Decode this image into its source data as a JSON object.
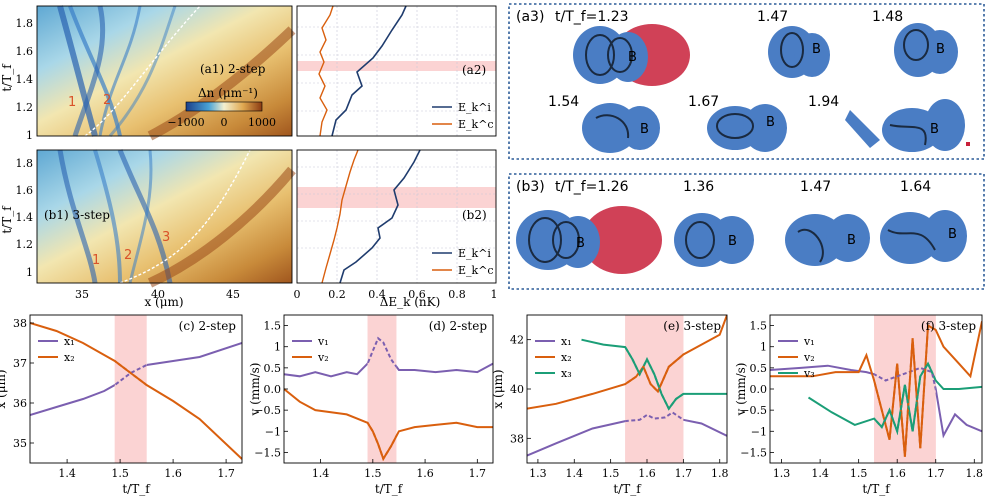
{
  "colors": {
    "blue": "#7b5fb0",
    "orange": "#d95f0e",
    "green": "#1b9e77",
    "navy": "#1f3c6e",
    "shade": "#fbd3d3",
    "cell": "#4a7dc4",
    "red": "#c8203a"
  },
  "panel_a1": {
    "label": "(a1) 2-step",
    "ylabel": "t/T_f",
    "yticks": [
      "1",
      "1.2",
      "1.4",
      "1.6",
      "1.8"
    ],
    "annot": [
      "1",
      "2"
    ],
    "colorbar": {
      "title": "Δn (μm⁻¹)",
      "ticks": [
        "−1000",
        "0",
        "1000"
      ]
    }
  },
  "panel_b1": {
    "label": "(b1) 3-step",
    "ylabel": "t/T_f",
    "yticks": [
      "1",
      "1.2",
      "1.4",
      "1.6",
      "1.8"
    ],
    "xticks": [
      "35",
      "40",
      "45"
    ],
    "xlabel": "x (μm)",
    "annot": [
      "1",
      "2",
      "3"
    ]
  },
  "panel_a2": {
    "label": "(a2)",
    "legend": [
      "E_k^i",
      "E_k^c"
    ]
  },
  "panel_b2": {
    "label": "(b2)",
    "legend": [
      "E_k^i",
      "E_k^c"
    ],
    "xticks": [
      "0",
      "0.2",
      "0.4",
      "0.6",
      "0.8",
      "1"
    ],
    "xlabel": "ΔE_k (nK)"
  },
  "panel_a3": {
    "label": "(a3)",
    "times": [
      "t/T_f=1.23",
      "1.47",
      "1.48",
      "1.54",
      "1.67",
      "1.94"
    ],
    "marker": "B"
  },
  "panel_b3": {
    "label": "(b3)",
    "times": [
      "t/T_f=1.26",
      "1.36",
      "1.47",
      "1.64"
    ],
    "marker": "B"
  },
  "chart_data": [
    {
      "id": "c",
      "type": "line",
      "title": "(c) 2-step",
      "xlabel": "t/T_f",
      "ylabel": "x (μm)",
      "xlim": [
        1.33,
        1.73
      ],
      "ylim": [
        34.5,
        38.2
      ],
      "xticks": [
        1.4,
        1.5,
        1.6,
        1.7
      ],
      "yticks": [
        35,
        36,
        37,
        38
      ],
      "shade": [
        1.49,
        1.55
      ],
      "series": [
        {
          "name": "x₁",
          "color": "#7b5fb0",
          "x": [
            1.33,
            1.38,
            1.43,
            1.47,
            1.49,
            1.52,
            1.55,
            1.6,
            1.65,
            1.73
          ],
          "y": [
            35.7,
            35.9,
            36.1,
            36.3,
            36.45,
            36.75,
            36.95,
            37.05,
            37.15,
            37.5
          ]
        },
        {
          "name": "x₂",
          "color": "#d95f0e",
          "x": [
            1.33,
            1.38,
            1.43,
            1.47,
            1.49,
            1.52,
            1.55,
            1.6,
            1.65,
            1.73
          ],
          "y": [
            38.0,
            37.8,
            37.5,
            37.2,
            37.05,
            36.75,
            36.45,
            36.05,
            35.6,
            34.6
          ]
        }
      ],
      "legend": [
        "x₁",
        "x₂"
      ]
    },
    {
      "id": "d",
      "type": "line",
      "title": "(d) 2-step",
      "xlabel": "t/T_f",
      "ylabel": "v (mm/s)",
      "xlim": [
        1.33,
        1.73
      ],
      "ylim": [
        -1.75,
        1.75
      ],
      "xticks": [
        1.4,
        1.5,
        1.6,
        1.7
      ],
      "yticks": [
        -1.5,
        -1.0,
        -0.5,
        0.0,
        0.5,
        1.0,
        1.5
      ],
      "shade": [
        1.49,
        1.545
      ],
      "series": [
        {
          "name": "v₁",
          "color": "#7b5fb0",
          "x": [
            1.33,
            1.36,
            1.39,
            1.42,
            1.45,
            1.47,
            1.49,
            1.5,
            1.51,
            1.52,
            1.535,
            1.55,
            1.58,
            1.62,
            1.66,
            1.7,
            1.73
          ],
          "y": [
            0.35,
            0.3,
            0.4,
            0.3,
            0.4,
            0.35,
            0.6,
            0.9,
            1.2,
            1.1,
            0.7,
            0.45,
            0.45,
            0.4,
            0.45,
            0.4,
            0.6
          ]
        },
        {
          "name": "v₂",
          "color": "#d95f0e",
          "x": [
            1.33,
            1.36,
            1.39,
            1.42,
            1.45,
            1.47,
            1.49,
            1.5,
            1.51,
            1.52,
            1.535,
            1.55,
            1.58,
            1.62,
            1.66,
            1.7,
            1.73
          ],
          "y": [
            0.0,
            -0.3,
            -0.5,
            -0.55,
            -0.6,
            -0.7,
            -0.8,
            -1.0,
            -1.3,
            -1.65,
            -1.35,
            -1.0,
            -0.9,
            -0.85,
            -0.8,
            -0.9,
            -0.9
          ]
        }
      ],
      "legend": [
        "v₁",
        "v₂"
      ]
    },
    {
      "id": "e",
      "type": "line",
      "title": "(e) 3-step",
      "xlabel": "t/T_f",
      "ylabel": "x (μm)",
      "xlim": [
        1.27,
        1.82
      ],
      "ylim": [
        37.0,
        43.0
      ],
      "xticks": [
        1.3,
        1.4,
        1.5,
        1.6,
        1.7,
        1.8
      ],
      "yticks": [
        38,
        40,
        42
      ],
      "shade": [
        1.54,
        1.7
      ],
      "series": [
        {
          "name": "x₁",
          "color": "#7b5fb0",
          "x": [
            1.27,
            1.35,
            1.45,
            1.54,
            1.58,
            1.6,
            1.62,
            1.65,
            1.67,
            1.7,
            1.75,
            1.82
          ],
          "y": [
            37.3,
            37.8,
            38.4,
            38.7,
            38.75,
            38.95,
            38.8,
            38.85,
            39.05,
            38.75,
            38.6,
            38.1
          ]
        },
        {
          "name": "x₂",
          "color": "#d95f0e",
          "x": [
            1.27,
            1.35,
            1.45,
            1.54,
            1.57,
            1.59,
            1.61,
            1.63,
            1.66,
            1.7,
            1.75,
            1.8,
            1.82
          ],
          "y": [
            39.2,
            39.4,
            39.8,
            40.2,
            40.5,
            40.9,
            40.2,
            39.9,
            40.9,
            41.4,
            41.8,
            42.2,
            43.0
          ]
        },
        {
          "name": "x₃",
          "color": "#1b9e77",
          "x": [
            1.42,
            1.48,
            1.54,
            1.56,
            1.58,
            1.6,
            1.62,
            1.64,
            1.66,
            1.68,
            1.7,
            1.75,
            1.82
          ],
          "y": [
            42.0,
            41.8,
            41.7,
            41.2,
            40.6,
            41.2,
            40.6,
            39.8,
            39.2,
            39.6,
            39.8,
            39.8,
            39.8
          ]
        }
      ],
      "legend": [
        "x₁",
        "x₂",
        "x₃"
      ]
    },
    {
      "id": "f",
      "type": "line",
      "title": "(f) 3-step",
      "xlabel": "t/T_f",
      "ylabel": "v (mm/s)",
      "xlim": [
        1.27,
        1.82
      ],
      "ylim": [
        -1.75,
        1.75
      ],
      "xticks": [
        1.3,
        1.4,
        1.5,
        1.6,
        1.7,
        1.8
      ],
      "yticks": [
        -1.5,
        -1.0,
        -0.5,
        0.0,
        0.5,
        1.0,
        1.5
      ],
      "shade": [
        1.54,
        1.7
      ],
      "series": [
        {
          "name": "v₁",
          "color": "#7b5fb0",
          "x": [
            1.27,
            1.35,
            1.42,
            1.48,
            1.52,
            1.54,
            1.57,
            1.6,
            1.63,
            1.66,
            1.69,
            1.7,
            1.72,
            1.75,
            1.78,
            1.82
          ],
          "y": [
            0.45,
            0.5,
            0.55,
            0.45,
            0.4,
            0.35,
            0.2,
            0.3,
            0.4,
            0.5,
            0.4,
            0.0,
            -1.1,
            -0.6,
            -0.85,
            -1.0
          ]
        },
        {
          "name": "v₂",
          "color": "#d95f0e",
          "x": [
            1.27,
            1.32,
            1.38,
            1.44,
            1.5,
            1.52,
            1.54,
            1.56,
            1.58,
            1.6,
            1.62,
            1.64,
            1.66,
            1.68,
            1.7,
            1.72,
            1.76,
            1.79,
            1.82
          ],
          "y": [
            0.3,
            0.3,
            0.3,
            0.4,
            0.4,
            0.8,
            0.2,
            -0.5,
            -1.2,
            0.6,
            -1.6,
            1.2,
            -1.4,
            1.5,
            1.4,
            1.0,
            0.6,
            0.3,
            1.6
          ]
        },
        {
          "name": "v₃",
          "color": "#1b9e77",
          "x": [
            1.37,
            1.43,
            1.49,
            1.54,
            1.56,
            1.58,
            1.6,
            1.62,
            1.64,
            1.66,
            1.68,
            1.7,
            1.72,
            1.76,
            1.82
          ],
          "y": [
            -0.2,
            -0.55,
            -0.85,
            -0.7,
            -0.9,
            -0.5,
            -1.0,
            0.1,
            -1.0,
            0.3,
            0.6,
            0.2,
            0.0,
            0.0,
            0.05
          ]
        }
      ],
      "legend": [
        "v₁",
        "v₂",
        "v₃"
      ]
    }
  ]
}
